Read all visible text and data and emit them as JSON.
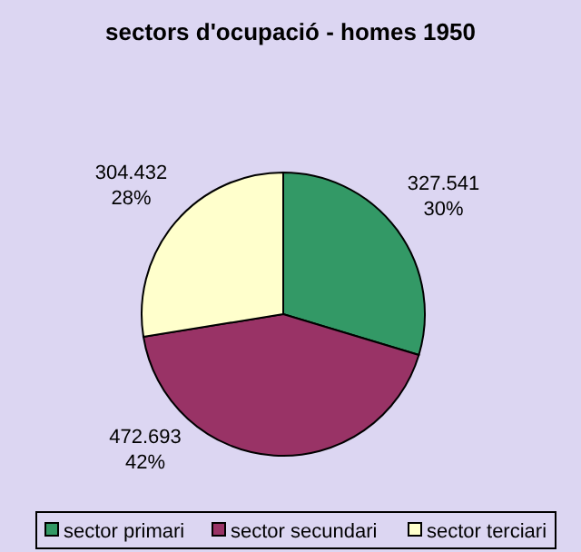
{
  "chart_data": {
    "type": "pie",
    "title": "sectors d'ocupació - homes 1950",
    "categories": [
      "sector primari",
      "sector secundari",
      "sector terciari"
    ],
    "values": [
      327541,
      472693,
      304432
    ],
    "colors": [
      "#339966",
      "#993366",
      "#ffffcc"
    ],
    "value_labels": [
      "327.541\n30%",
      "472.693\n42%",
      "304.432\n28%"
    ],
    "legend": "bottom"
  }
}
